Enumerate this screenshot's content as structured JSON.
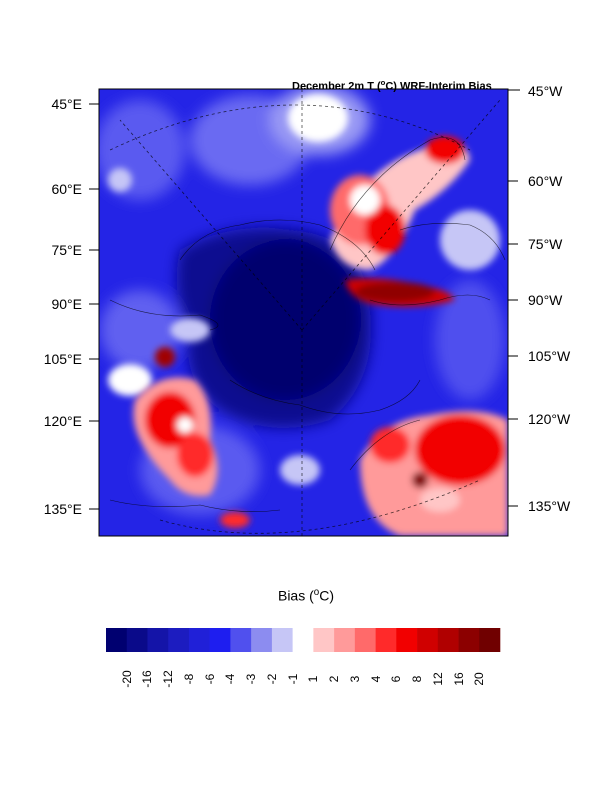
{
  "title": {
    "main": "December 2m T (",
    "sup": "o",
    "tail": "C) WRF-Interim Bias"
  },
  "left_labels": [
    "45°E",
    "60°E",
    "75°E",
    "90°E",
    "105°E",
    "120°E",
    "135°E"
  ],
  "right_labels": [
    "45°W",
    "60°W",
    "75°W",
    "90°W",
    "105°W",
    "120°W",
    "135°W"
  ],
  "colorbar": {
    "title": {
      "main": "Bias (",
      "sup": "o",
      "tail": "C)"
    },
    "ticks": [
      "-20",
      "-16",
      "-12",
      "-8",
      "-6",
      "-4",
      "-3",
      "-2",
      "-1",
      "1",
      "2",
      "3",
      "4",
      "6",
      "8",
      "12",
      "16",
      "20"
    ],
    "colors": [
      "#000070",
      "#0a0a8a",
      "#1414a8",
      "#1c1cc0",
      "#2020d8",
      "#1e1ef0",
      "#5050ee",
      "#8c8cf0",
      "#c6c6f6",
      "#ffffff",
      "#ffc6c6",
      "#ff9a9a",
      "#ff6a6a",
      "#ff2a2a",
      "#f20000",
      "#d00000",
      "#b00000",
      "#8c0000",
      "#700000"
    ]
  },
  "palette": {
    "cold_deep": "#00007a",
    "cold": "#1e1ef0",
    "neutral": "#ffffff",
    "warm": "#f20000",
    "warm_deep": "#7a0000"
  }
}
